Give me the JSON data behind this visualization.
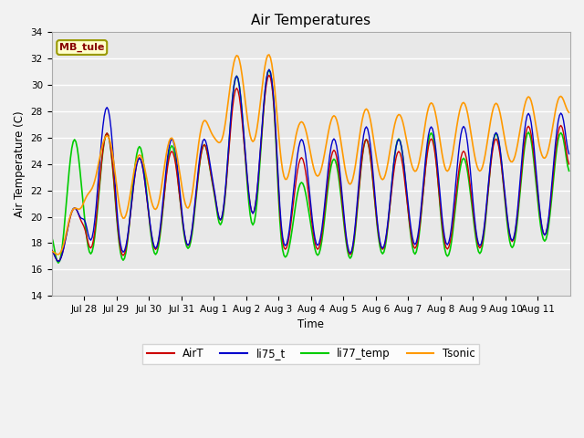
{
  "title": "Air Temperatures",
  "xlabel": "Time",
  "ylabel": "Air Temperature (C)",
  "ylim": [
    14,
    34
  ],
  "yticks": [
    14,
    16,
    18,
    20,
    22,
    24,
    26,
    28,
    30,
    32,
    34
  ],
  "colors": {
    "AirT": "#cc0000",
    "li75_t": "#0000cc",
    "li77_temp": "#00cc00",
    "Tsonic": "#ff9900"
  },
  "line_widths": {
    "AirT": 1.0,
    "li75_t": 1.0,
    "li77_temp": 1.2,
    "Tsonic": 1.2
  },
  "annotation_text": "MB_tule",
  "plot_bg_color": "#e8e8e8",
  "tick_label_size": 7.5,
  "axis_label_size": 8.5,
  "title_size": 11,
  "daily_mins_AirT": [
    16.3,
    17.0,
    16.5,
    17.0,
    17.3,
    19.0,
    19.5,
    17.0,
    17.0,
    16.5,
    17.0,
    17.0,
    17.0,
    17.0,
    17.5,
    18.0
  ],
  "daily_maxs_AirT": [
    21.0,
    27.0,
    25.0,
    25.5,
    26.0,
    30.5,
    31.5,
    25.0,
    25.5,
    26.5,
    25.5,
    26.5,
    25.5,
    26.5,
    27.5,
    27.5
  ],
  "daily_mins_li75": [
    16.3,
    17.5,
    16.8,
    17.0,
    17.3,
    19.0,
    19.5,
    17.2,
    17.2,
    16.5,
    17.0,
    17.2,
    17.2,
    17.2,
    17.5,
    18.0
  ],
  "daily_maxs_li75": [
    21.0,
    29.0,
    25.0,
    26.5,
    26.5,
    31.5,
    32.0,
    26.5,
    26.5,
    27.5,
    26.5,
    27.5,
    27.5,
    27.0,
    28.5,
    28.5
  ],
  "daily_mins_li77": [
    15.8,
    16.5,
    16.0,
    16.5,
    17.0,
    18.5,
    18.5,
    16.5,
    16.5,
    16.2,
    16.5,
    16.5,
    16.5,
    16.5,
    17.0,
    17.5
  ],
  "daily_maxs_li77": [
    26.5,
    27.0,
    26.0,
    26.0,
    26.0,
    31.5,
    32.0,
    23.0,
    25.0,
    26.5,
    26.5,
    27.0,
    25.0,
    27.0,
    27.0,
    27.0
  ],
  "daily_mins_ts": [
    16.5,
    21.5,
    19.0,
    19.5,
    19.5,
    24.5,
    24.5,
    22.0,
    22.5,
    21.5,
    22.0,
    22.5,
    22.5,
    22.5,
    23.0,
    23.5
  ],
  "daily_maxs_ts": [
    21.0,
    27.0,
    25.5,
    27.0,
    28.5,
    33.5,
    33.5,
    28.0,
    28.5,
    29.0,
    28.5,
    29.5,
    29.5,
    29.5,
    30.0,
    30.0
  ]
}
